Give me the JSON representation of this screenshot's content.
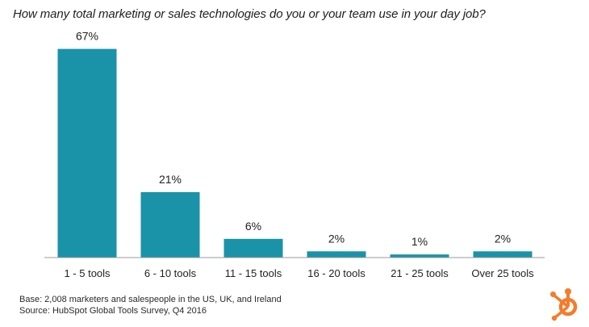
{
  "chart_data": {
    "type": "bar",
    "title": "How many total marketing or sales technologies do you or your team use in your day job?",
    "categories": [
      "1 - 5 tools",
      "6 - 10 tools",
      "11 - 15 tools",
      "16 - 20 tools",
      "21 - 25 tools",
      "Over 25 tools"
    ],
    "values": [
      67,
      21,
      6,
      2,
      1,
      2
    ],
    "data_labels": [
      "67%",
      "21%",
      "6%",
      "2%",
      "1%",
      "2%"
    ],
    "ylim": [
      0,
      70
    ],
    "grid": false,
    "bar_color": "#1a92a8"
  },
  "footer": {
    "base": "Base: 2,008 marketers and salespeople in the US, UK, and Ireland",
    "source": "Source: HubSpot Global Tools Survey, Q4 2016"
  },
  "colors": {
    "accent": "#1a92a8",
    "logo": "#f57c2b"
  },
  "logo_icon": "hubspot-sprocket-icon"
}
